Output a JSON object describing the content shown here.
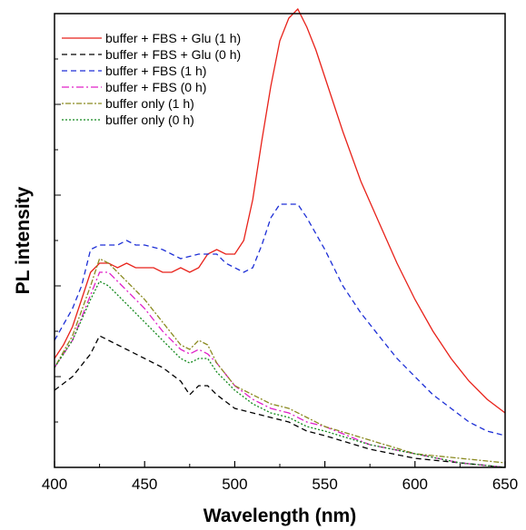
{
  "chart_data": {
    "type": "line",
    "xlabel": "Wavelength (nm)",
    "ylabel": "PL intensity",
    "xlim": [
      400,
      650
    ],
    "ylim": [
      0,
      100
    ],
    "y_tick_labels_shown": false,
    "grid": false,
    "legend_position": "top-left",
    "x_ticks": [
      400,
      450,
      500,
      550,
      600,
      650
    ],
    "series": [
      {
        "name": "buffer + FBS + Glu (1 h)",
        "color": "#e8221a",
        "dash": "solid",
        "x": [
          400,
          405,
          410,
          415,
          420,
          425,
          430,
          435,
          440,
          445,
          450,
          455,
          460,
          465,
          470,
          475,
          480,
          485,
          490,
          495,
          500,
          505,
          510,
          515,
          520,
          525,
          530,
          535,
          540,
          545,
          550,
          555,
          560,
          570,
          580,
          590,
          600,
          610,
          620,
          630,
          640,
          650
        ],
        "y": [
          24,
          27,
          31,
          37,
          43,
          45,
          45,
          44,
          45,
          44,
          44,
          44,
          43,
          43,
          44,
          43,
          44,
          47,
          48,
          47,
          47,
          50,
          59,
          72,
          84,
          94,
          99,
          101,
          97,
          92,
          86,
          80,
          74,
          63,
          54,
          45,
          37,
          30,
          24,
          19,
          15,
          12
        ]
      },
      {
        "name": "buffer + FBS + Glu (0 h)",
        "color": "#000000",
        "dash": "6,4",
        "x": [
          400,
          410,
          420,
          425,
          430,
          435,
          440,
          450,
          460,
          470,
          475,
          480,
          485,
          490,
          500,
          510,
          520,
          530,
          540,
          550,
          575,
          600,
          625,
          650
        ],
        "y": [
          17,
          20,
          25,
          29,
          28,
          27,
          26,
          24,
          22,
          19,
          16,
          18,
          18,
          16,
          13,
          12,
          11,
          10,
          8,
          7,
          4,
          2,
          1,
          0
        ]
      },
      {
        "name": "buffer + FBS (1 h)",
        "color": "#1d2fd6",
        "dash": "6,4",
        "x": [
          400,
          410,
          415,
          420,
          425,
          430,
          435,
          440,
          445,
          450,
          460,
          470,
          480,
          485,
          490,
          495,
          500,
          505,
          510,
          515,
          520,
          525,
          530,
          535,
          540,
          550,
          560,
          570,
          580,
          590,
          600,
          610,
          620,
          630,
          640,
          650
        ],
        "y": [
          28,
          35,
          40,
          48,
          49,
          49,
          49,
          50,
          49,
          49,
          48,
          46,
          47,
          47,
          47,
          45,
          44,
          43,
          44,
          49,
          55,
          58,
          58,
          58,
          55,
          48,
          40,
          34,
          29,
          24,
          20,
          16,
          13,
          10,
          8,
          7
        ]
      },
      {
        "name": "buffer + FBS (0 h)",
        "color": "#e020c8",
        "dash": "8,3,2,3",
        "x": [
          400,
          410,
          420,
          425,
          430,
          435,
          440,
          450,
          460,
          470,
          475,
          480,
          485,
          490,
          500,
          510,
          520,
          530,
          540,
          550,
          575,
          600,
          625,
          650
        ],
        "y": [
          22,
          28,
          38,
          43,
          43,
          41,
          39,
          35,
          30,
          26,
          25,
          26,
          25,
          23,
          18,
          15,
          13,
          12,
          10,
          9,
          5,
          3,
          1,
          0
        ]
      },
      {
        "name": "buffer only (1 h)",
        "color": "#8a8a20",
        "dash": "2,2,6,2",
        "x": [
          400,
          410,
          420,
          425,
          430,
          435,
          440,
          450,
          460,
          470,
          475,
          480,
          485,
          490,
          500,
          510,
          520,
          530,
          540,
          550,
          575,
          600,
          625,
          650
        ],
        "y": [
          22,
          29,
          40,
          46,
          45,
          43,
          41,
          37,
          32,
          27,
          26,
          28,
          27,
          23,
          18,
          16,
          14,
          13,
          11,
          9,
          6,
          3,
          2,
          1
        ]
      },
      {
        "name": "buffer only (0 h)",
        "color": "#13891d",
        "dash": "2,2",
        "x": [
          400,
          410,
          420,
          425,
          430,
          435,
          440,
          450,
          460,
          470,
          475,
          480,
          485,
          490,
          500,
          510,
          520,
          530,
          540,
          550,
          575,
          600,
          625,
          650
        ],
        "y": [
          22,
          28,
          37,
          41,
          40,
          38,
          36,
          32,
          28,
          24,
          23,
          24,
          24,
          21,
          17,
          14,
          12,
          11,
          9,
          8,
          5,
          3,
          1,
          0
        ]
      }
    ]
  }
}
